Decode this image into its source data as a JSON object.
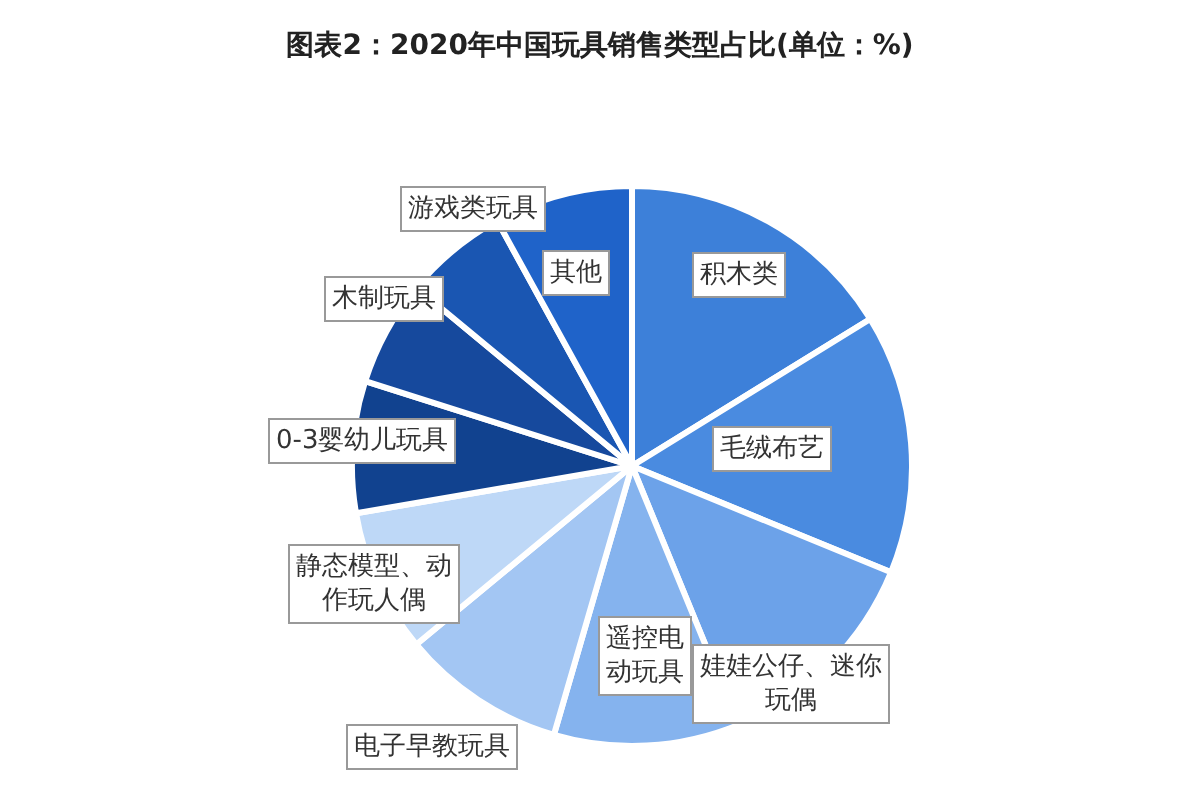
{
  "chart_data": {
    "type": "pie",
    "title": "图表2：2020年中国玩具销售类型占比(单位：%)",
    "categories": [
      "积木类",
      "毛绒布艺",
      "娃娃公仔、迷你玩偶",
      "遥控电动玩具",
      "电子早教玩具",
      "静态模型、动作玩人偶",
      "0-3婴幼儿玩具",
      "木制玩具",
      "游戏类玩具",
      "其他"
    ],
    "values": [
      16.2,
      15.0,
      12.6,
      10.7,
      9.5,
      8.3,
      7.6,
      6.1,
      6.0,
      8.0
    ],
    "colors": [
      "#3d80d9",
      "#4a8be0",
      "#6ca2e9",
      "#85b3ee",
      "#a3c6f3",
      "#bed8f7",
      "#11428f",
      "#16499d",
      "#1a56b2",
      "#1f63c9"
    ],
    "legend": false
  }
}
